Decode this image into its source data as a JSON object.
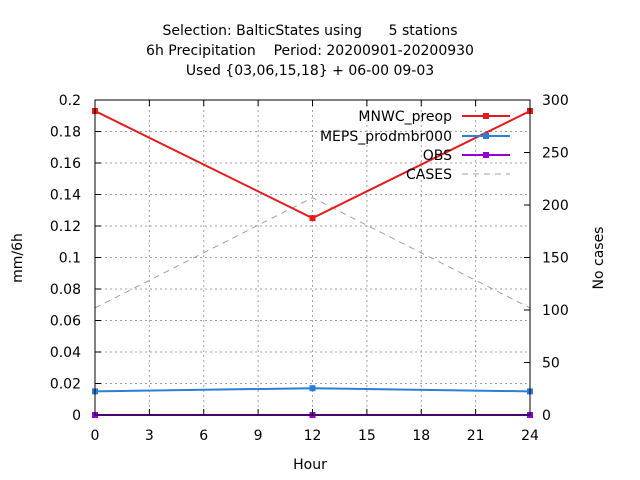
{
  "chart_data": {
    "type": "line",
    "title_lines": [
      "Selection: BalticStates using      5 stations",
      "6h Precipitation    Period: 20200901-20200930",
      "Used {03,06,15,18} + 06-00 09-03"
    ],
    "xlabel": "Hour",
    "ylabel": "mm/6h",
    "y2label": "No cases",
    "xlim": [
      0,
      24
    ],
    "ylim": [
      0,
      0.2
    ],
    "y2lim": [
      0,
      300
    ],
    "x_ticks": [
      0,
      3,
      6,
      9,
      12,
      15,
      18,
      21,
      24
    ],
    "y_ticks": [
      0,
      0.02,
      0.04,
      0.06,
      0.08,
      0.1,
      0.12,
      0.14,
      0.16,
      0.18,
      0.2
    ],
    "y_tick_labels": [
      "0",
      "0.02",
      "0.04",
      "0.06",
      "0.08",
      "0.1",
      "0.12",
      "0.14",
      "0.16",
      "0.18",
      "0.2"
    ],
    "y2_ticks": [
      0,
      50,
      100,
      150,
      200,
      250,
      300
    ],
    "grid": true,
    "legend_position": "top-right",
    "x": [
      0,
      12,
      24
    ],
    "series": [
      {
        "name": "MNWC_preop",
        "axis": "y",
        "color": "#e41a1c",
        "style": "solid",
        "marker": "point",
        "values": [
          0.193,
          0.125,
          0.193
        ]
      },
      {
        "name": "MEPS_prodmbr000",
        "axis": "y",
        "color": "#2b7fd6",
        "style": "solid",
        "marker": "point",
        "values": [
          0.015,
          0.017,
          0.015
        ]
      },
      {
        "name": "OBS",
        "axis": "y",
        "color": "#9400d3",
        "style": "solid",
        "marker": "point",
        "values": [
          0.0,
          0.0,
          0.0
        ]
      },
      {
        "name": "CASES",
        "axis": "y2",
        "color": "#a0a0a0",
        "style": "dashed",
        "marker": "none",
        "values": [
          102,
          207,
          102
        ]
      }
    ]
  }
}
